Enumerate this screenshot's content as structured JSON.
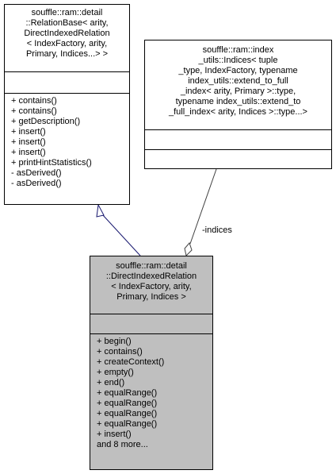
{
  "nodes": {
    "relation_base": {
      "title_lines": [
        "souffle::ram::detail",
        "::RelationBase< arity,",
        " DirectIndexedRelation",
        "< IndexFactory, arity,",
        " Primary, Indices...> >"
      ],
      "attributes": [],
      "methods": [
        "+ contains()",
        "+ contains()",
        "+ getDescription()",
        "+ insert()",
        "+ insert()",
        "+ insert()",
        "+ printHintStatistics()",
        "- asDerived()",
        "- asDerived()"
      ]
    },
    "indices": {
      "title_lines": [
        "souffle::ram::index",
        "_utils::Indices< tuple",
        "_type, IndexFactory, typename",
        " index_utils::extend_to_full",
        "_index< arity, Primary >::type,",
        " typename index_utils::extend_to",
        "_full_index< arity, Indices >::type...>"
      ],
      "attributes": [],
      "methods": []
    },
    "direct_indexed_relation": {
      "title_lines": [
        "souffle::ram::detail",
        "::DirectIndexedRelation",
        "< IndexFactory, arity,",
        " Primary, Indices >"
      ],
      "attributes": [],
      "methods": [
        "+ begin()",
        "+ contains()",
        "+ createContext()",
        "+ empty()",
        "+ end()",
        "+ equalRange()",
        "+ equalRange()",
        "+ equalRange()",
        "+ equalRange()",
        "+ insert()",
        "and 8 more..."
      ]
    }
  },
  "edges": {
    "inheritance": {
      "from": "direct_indexed_relation",
      "to": "relation_base",
      "kind": "inheritance"
    },
    "composition": {
      "from": "indices",
      "to": "direct_indexed_relation",
      "kind": "aggregation",
      "label": "-indices"
    }
  },
  "colors": {
    "inheritance_edge": "#191970",
    "composition_edge": "#404040",
    "current_node_fill": "#bfbfbf"
  }
}
